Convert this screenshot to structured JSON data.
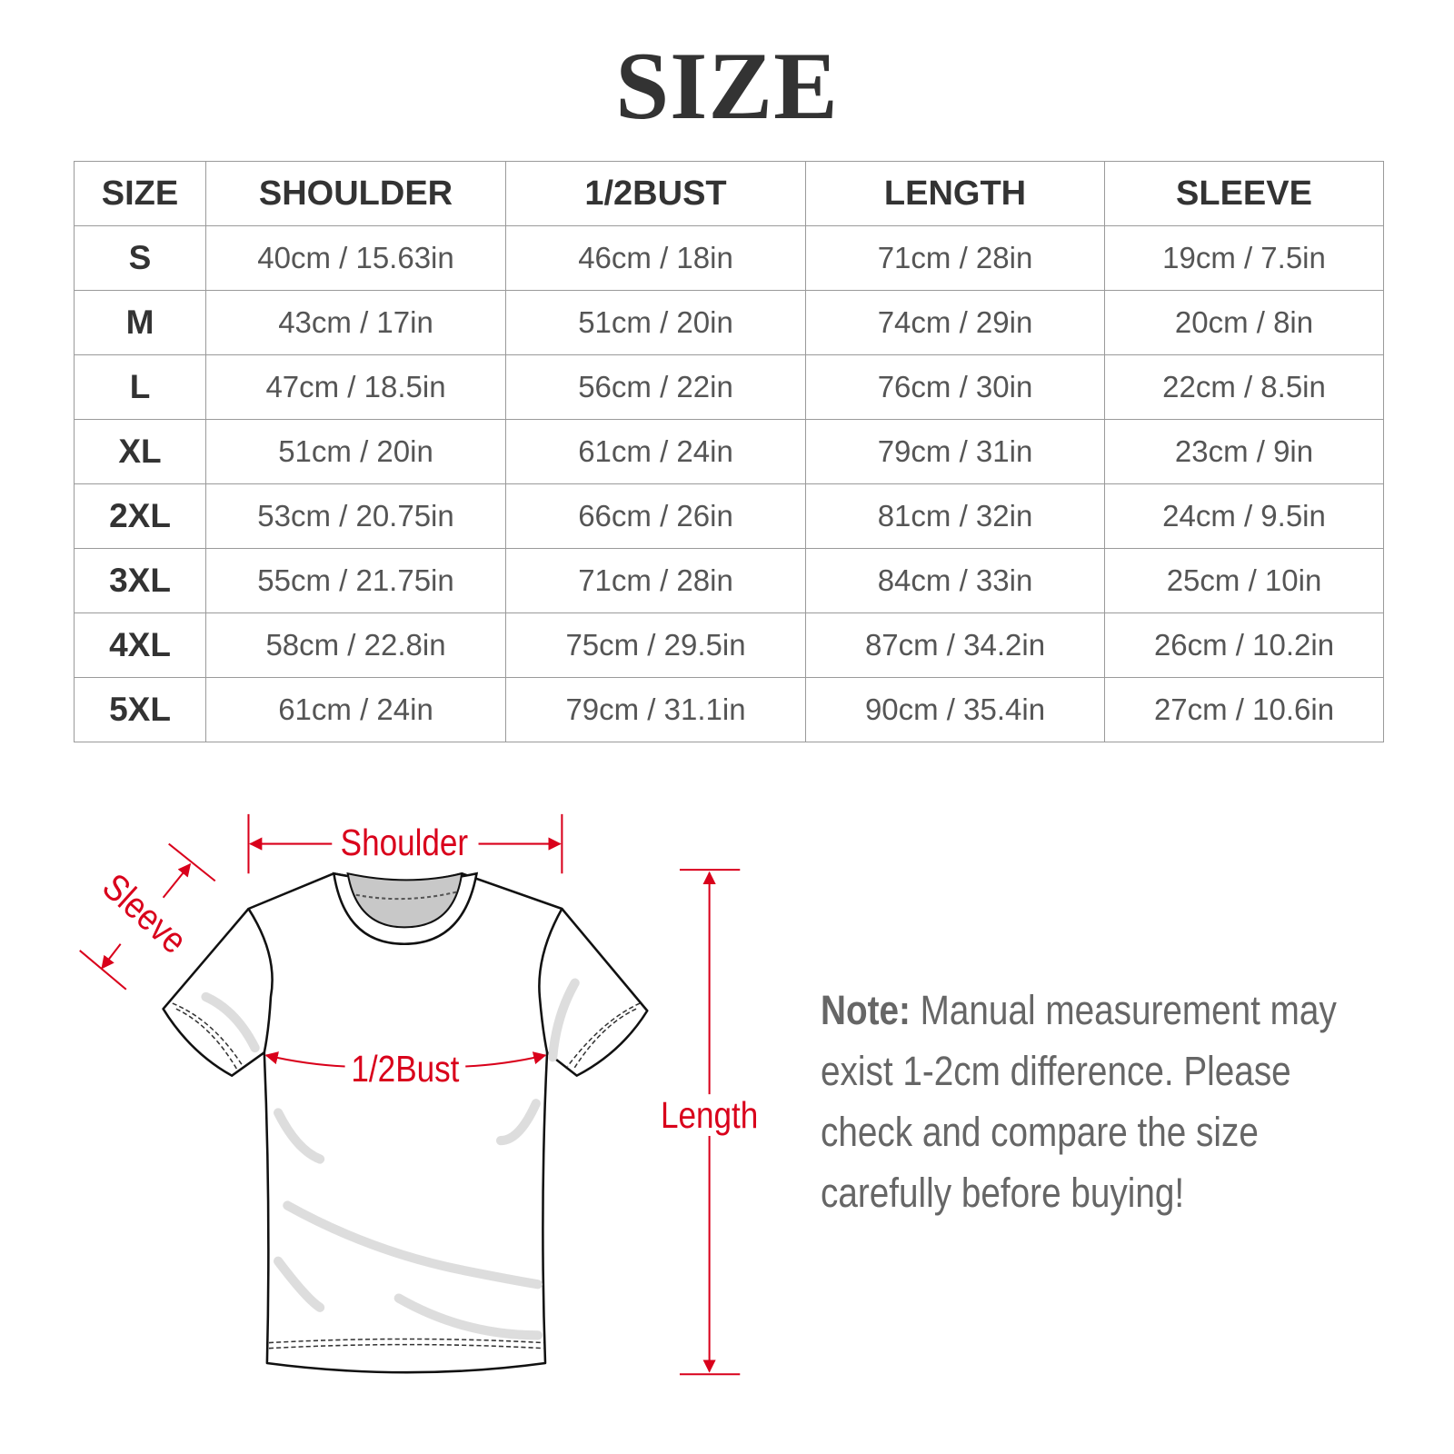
{
  "title": "SIZE",
  "table": {
    "headers": [
      "SIZE",
      "SHOULDER",
      "1/2BUST",
      "LENGTH",
      "SLEEVE"
    ],
    "rows": [
      [
        "S",
        "40cm / 15.63in",
        "46cm / 18in",
        "71cm / 28in",
        "19cm / 7.5in"
      ],
      [
        "M",
        "43cm / 17in",
        "51cm / 20in",
        "74cm / 29in",
        "20cm / 8in"
      ],
      [
        "L",
        "47cm / 18.5in",
        "56cm / 22in",
        "76cm / 30in",
        "22cm / 8.5in"
      ],
      [
        "XL",
        "51cm / 20in",
        "61cm / 24in",
        "79cm / 31in",
        "23cm / 9in"
      ],
      [
        "2XL",
        "53cm / 20.75in",
        "66cm / 26in",
        "81cm / 32in",
        "24cm / 9.5in"
      ],
      [
        "3XL",
        "55cm / 21.75in",
        "71cm / 28in",
        "84cm / 33in",
        "25cm / 10in"
      ],
      [
        "4XL",
        "58cm / 22.8in",
        "75cm / 29.5in",
        "87cm / 34.2in",
        "26cm / 10.2in"
      ],
      [
        "5XL",
        "61cm / 24in",
        "79cm / 31.1in",
        "90cm / 35.4in",
        "27cm / 10.6in"
      ]
    ]
  },
  "diagram": {
    "labels": {
      "shoulder": "Shoulder",
      "sleeve": "Sleeve",
      "bust": "1/2Bust",
      "length": "Length"
    },
    "accent_color": "#d9001b"
  },
  "note": {
    "label": "Note:",
    "text": "Manual measurement may exist 1-2cm difference. Please check and compare the size carefully before buying!"
  }
}
